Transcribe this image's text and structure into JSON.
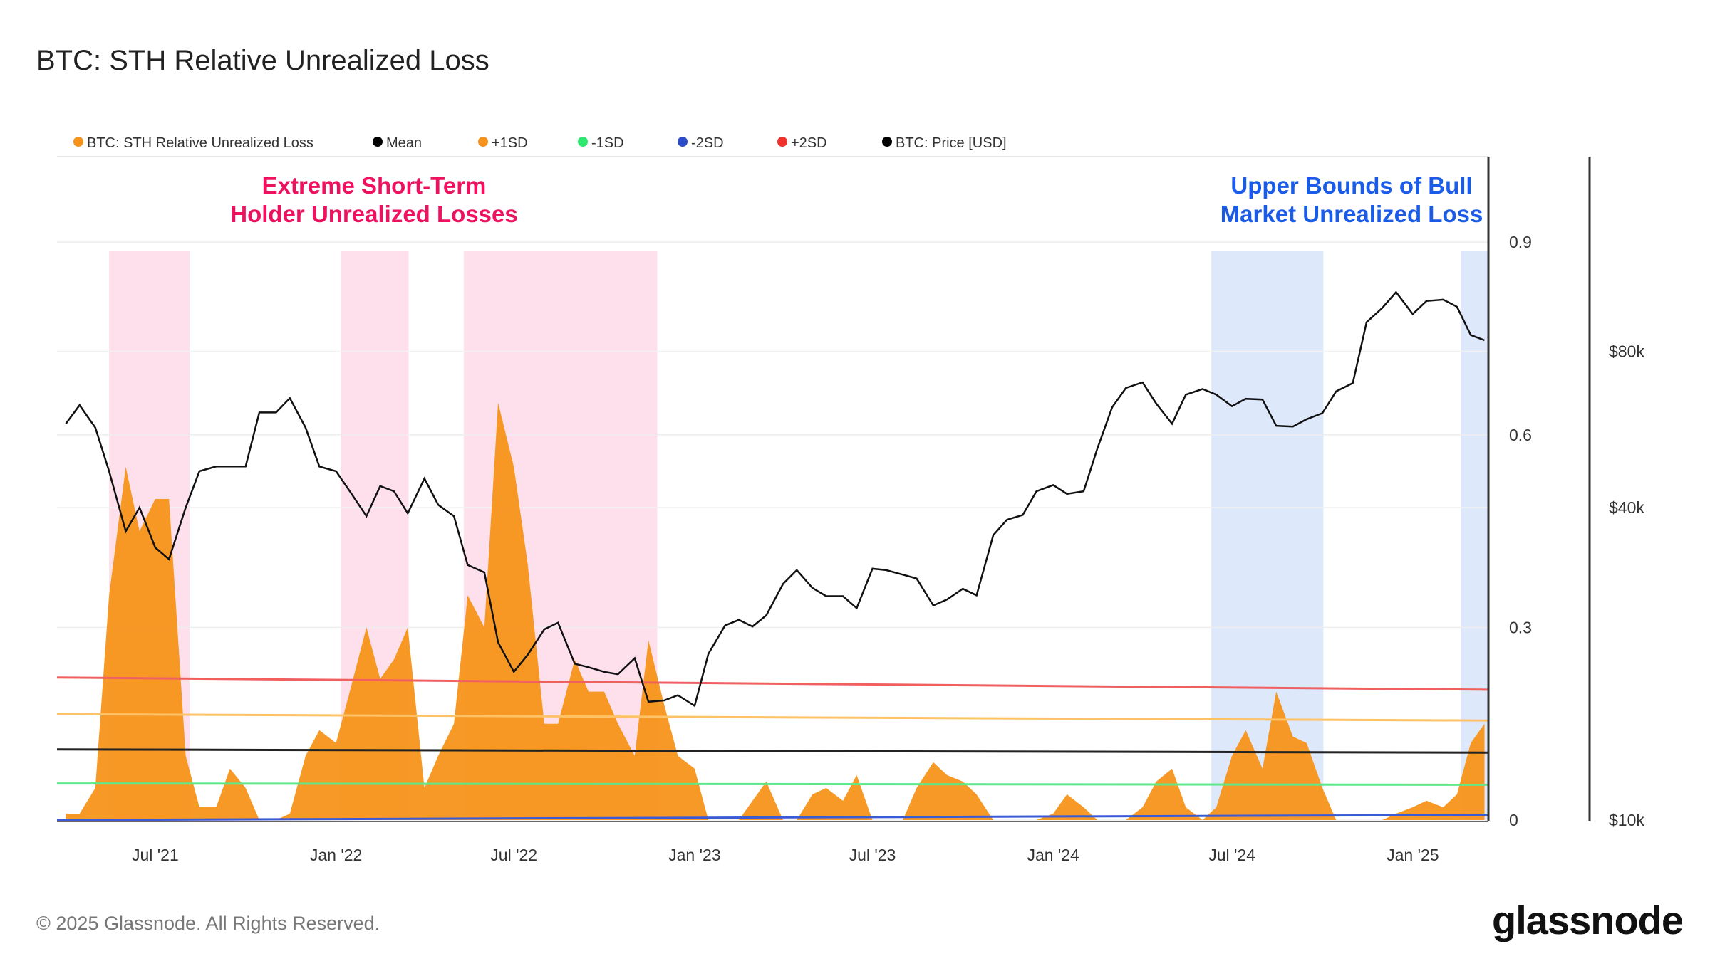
{
  "header": {
    "title": "BTC: STH Relative Unrealized Loss"
  },
  "footer": {
    "copyright": "© 2025 Glassnode. All Rights Reserved.",
    "logo": "glassnode"
  },
  "chart_data": {
    "type": "area+line",
    "title": "BTC: STH Relative Unrealized Loss",
    "legend_position": "top-left",
    "legend": [
      {
        "label": "BTC: STH Relative Unrealized Loss",
        "color": "#f7931a"
      },
      {
        "label": "Mean",
        "color": "#000000"
      },
      {
        "label": "+1SD",
        "color": "#f7931a"
      },
      {
        "label": "-1SD",
        "color": "#2ee86f"
      },
      {
        "label": "-2SD",
        "color": "#2b4bc8"
      },
      {
        "label": "+2SD",
        "color": "#f0302a"
      },
      {
        "label": "BTC: Price [USD]",
        "color": "#000000"
      }
    ],
    "x_range": [
      "2021-03-23",
      "2025-03-19"
    ],
    "x_ticks": [
      {
        "date": "2021-07-01",
        "label": "Jul '21"
      },
      {
        "date": "2022-01-01",
        "label": "Jan '22"
      },
      {
        "date": "2022-07-01",
        "label": "Jul '22"
      },
      {
        "date": "2023-01-01",
        "label": "Jan '23"
      },
      {
        "date": "2023-07-01",
        "label": "Jul '23"
      },
      {
        "date": "2024-01-01",
        "label": "Jan '24"
      },
      {
        "date": "2024-07-01",
        "label": "Jul '24"
      },
      {
        "date": "2025-01-01",
        "label": "Jan '25"
      }
    ],
    "y_left": {
      "range": [
        0,
        0.9
      ],
      "ticks": [
        {
          "value": 0,
          "label": "0"
        },
        {
          "value": 0.3,
          "label": "0.3"
        },
        {
          "value": 0.6,
          "label": "0.6"
        },
        {
          "value": 0.9,
          "label": "0.9"
        }
      ]
    },
    "y_right": {
      "scale": "log",
      "ticks": [
        {
          "value": 10000,
          "label": "$10k"
        },
        {
          "value": 40000,
          "label": "$40k"
        },
        {
          "value": 80000,
          "label": "$80k"
        }
      ]
    },
    "grid": true,
    "columns": [
      "date",
      "sth_relative_unrealized_loss",
      "price_usd"
    ],
    "points": [
      [
        "2021-04-01",
        0.01,
        58000
      ],
      [
        "2021-04-15",
        0.01,
        63000
      ],
      [
        "2021-05-01",
        0.05,
        57000
      ],
      [
        "2021-05-15",
        0.35,
        47000
      ],
      [
        "2021-06-01",
        0.55,
        36000
      ],
      [
        "2021-06-15",
        0.45,
        40000
      ],
      [
        "2021-07-01",
        0.5,
        33500
      ],
      [
        "2021-07-15",
        0.5,
        31800
      ],
      [
        "2021-08-01",
        0.1,
        40000
      ],
      [
        "2021-08-15",
        0.02,
        47000
      ],
      [
        "2021-09-01",
        0.02,
        48000
      ],
      [
        "2021-09-15",
        0.08,
        48000
      ],
      [
        "2021-10-01",
        0.05,
        48000
      ],
      [
        "2021-10-15",
        0.0,
        61000
      ],
      [
        "2021-11-01",
        0.0,
        61000
      ],
      [
        "2021-11-15",
        0.01,
        65000
      ],
      [
        "2021-12-01",
        0.1,
        57000
      ],
      [
        "2021-12-15",
        0.14,
        48000
      ],
      [
        "2022-01-01",
        0.12,
        47000
      ],
      [
        "2022-01-15",
        0.2,
        43000
      ],
      [
        "2022-02-01",
        0.3,
        38500
      ],
      [
        "2022-02-15",
        0.22,
        44000
      ],
      [
        "2022-03-01",
        0.25,
        43000
      ],
      [
        "2022-03-15",
        0.3,
        39000
      ],
      [
        "2022-04-01",
        0.05,
        45500
      ],
      [
        "2022-04-15",
        0.1,
        40500
      ],
      [
        "2022-05-01",
        0.15,
        38500
      ],
      [
        "2022-05-15",
        0.35,
        31000
      ],
      [
        "2022-06-01",
        0.3,
        30000
      ],
      [
        "2022-06-15",
        0.65,
        22000
      ],
      [
        "2022-07-01",
        0.55,
        19300
      ],
      [
        "2022-07-15",
        0.4,
        20800
      ],
      [
        "2022-08-01",
        0.15,
        23300
      ],
      [
        "2022-08-15",
        0.15,
        24000
      ],
      [
        "2022-09-01",
        0.25,
        20000
      ],
      [
        "2022-09-15",
        0.2,
        19700
      ],
      [
        "2022-10-01",
        0.2,
        19300
      ],
      [
        "2022-10-15",
        0.15,
        19100
      ],
      [
        "2022-11-01",
        0.1,
        20500
      ],
      [
        "2022-11-15",
        0.28,
        16900
      ],
      [
        "2022-12-01",
        0.18,
        17000
      ],
      [
        "2022-12-15",
        0.1,
        17400
      ],
      [
        "2023-01-01",
        0.08,
        16600
      ],
      [
        "2023-01-15",
        0.0,
        20900
      ],
      [
        "2023-02-01",
        0.0,
        23700
      ],
      [
        "2023-02-15",
        0.0,
        24300
      ],
      [
        "2023-03-01",
        0.03,
        23600
      ],
      [
        "2023-03-15",
        0.06,
        24800
      ],
      [
        "2023-04-01",
        0.0,
        28500
      ],
      [
        "2023-04-15",
        0.0,
        30300
      ],
      [
        "2023-05-01",
        0.04,
        28000
      ],
      [
        "2023-05-15",
        0.05,
        27000
      ],
      [
        "2023-06-01",
        0.03,
        27000
      ],
      [
        "2023-06-15",
        0.07,
        25600
      ],
      [
        "2023-07-01",
        0.0,
        30500
      ],
      [
        "2023-07-15",
        0.0,
        30300
      ],
      [
        "2023-08-01",
        0.0,
        29700
      ],
      [
        "2023-08-15",
        0.05,
        29200
      ],
      [
        "2023-09-01",
        0.09,
        25900
      ],
      [
        "2023-09-15",
        0.07,
        26600
      ],
      [
        "2023-10-01",
        0.06,
        27900
      ],
      [
        "2023-10-15",
        0.04,
        27100
      ],
      [
        "2023-11-01",
        0.0,
        35400
      ],
      [
        "2023-11-15",
        0.0,
        37900
      ],
      [
        "2023-12-01",
        0.0,
        38700
      ],
      [
        "2023-12-15",
        0.0,
        43000
      ],
      [
        "2024-01-01",
        0.01,
        44200
      ],
      [
        "2024-01-15",
        0.04,
        42500
      ],
      [
        "2024-02-01",
        0.02,
        43000
      ],
      [
        "2024-02-15",
        0.0,
        52000
      ],
      [
        "2024-03-01",
        0.0,
        62400
      ],
      [
        "2024-03-15",
        0.0,
        68000
      ],
      [
        "2024-04-01",
        0.02,
        69700
      ],
      [
        "2024-04-15",
        0.06,
        63400
      ],
      [
        "2024-05-01",
        0.08,
        58000
      ],
      [
        "2024-05-15",
        0.02,
        66000
      ],
      [
        "2024-06-01",
        0.0,
        67700
      ],
      [
        "2024-06-15",
        0.02,
        66000
      ],
      [
        "2024-07-01",
        0.1,
        62700
      ],
      [
        "2024-07-15",
        0.14,
        64800
      ],
      [
        "2024-08-01",
        0.08,
        64600
      ],
      [
        "2024-08-15",
        0.2,
        57500
      ],
      [
        "2024-09-01",
        0.13,
        57300
      ],
      [
        "2024-09-15",
        0.12,
        59200
      ],
      [
        "2024-10-01",
        0.05,
        60800
      ],
      [
        "2024-10-15",
        0.0,
        67000
      ],
      [
        "2024-11-01",
        0.0,
        69500
      ],
      [
        "2024-11-15",
        0.0,
        91000
      ],
      [
        "2024-12-01",
        0.0,
        97000
      ],
      [
        "2024-12-15",
        0.01,
        104000
      ],
      [
        "2025-01-01",
        0.02,
        94400
      ],
      [
        "2025-01-15",
        0.03,
        100000
      ],
      [
        "2025-02-01",
        0.02,
        100600
      ],
      [
        "2025-02-15",
        0.04,
        97500
      ],
      [
        "2025-03-01",
        0.12,
        86000
      ],
      [
        "2025-03-15",
        0.15,
        84000
      ]
    ],
    "bands": [
      {
        "label": "+2SD",
        "start": 0.222,
        "end": 0.203,
        "color": "#f06060"
      },
      {
        "label": "+1SD",
        "start": 0.165,
        "end": 0.155,
        "color": "#ffc266"
      },
      {
        "label": "Mean",
        "start": 0.11,
        "end": 0.105,
        "color": "#222222"
      },
      {
        "label": "-1SD",
        "start": 0.057,
        "end": 0.055,
        "color": "#5fe88a"
      },
      {
        "label": "-2SD",
        "start": 0.0,
        "end": 0.008,
        "color": "#3b5bd6"
      }
    ],
    "highlight_regions": [
      {
        "start": "2021-05-15",
        "end": "2021-08-05",
        "color": "#fde0ec"
      },
      {
        "start": "2022-01-06",
        "end": "2022-03-16",
        "color": "#fde0ec"
      },
      {
        "start": "2022-05-11",
        "end": "2022-11-24",
        "color": "#fde0ec"
      },
      {
        "start": "2024-06-10",
        "end": "2024-10-02",
        "color": "#dde8fb"
      },
      {
        "start": "2025-02-19",
        "end": "2025-03-19",
        "color": "#dde8fb"
      }
    ],
    "annotations": [
      {
        "lines": [
          "Extreme Short-Term",
          "Holder Unrealized Losses"
        ],
        "color": "#ee1160"
      },
      {
        "lines": [
          "Upper Bounds of Bull",
          "Market Unrealized Loss"
        ],
        "color": "#1a5ce8"
      }
    ]
  }
}
